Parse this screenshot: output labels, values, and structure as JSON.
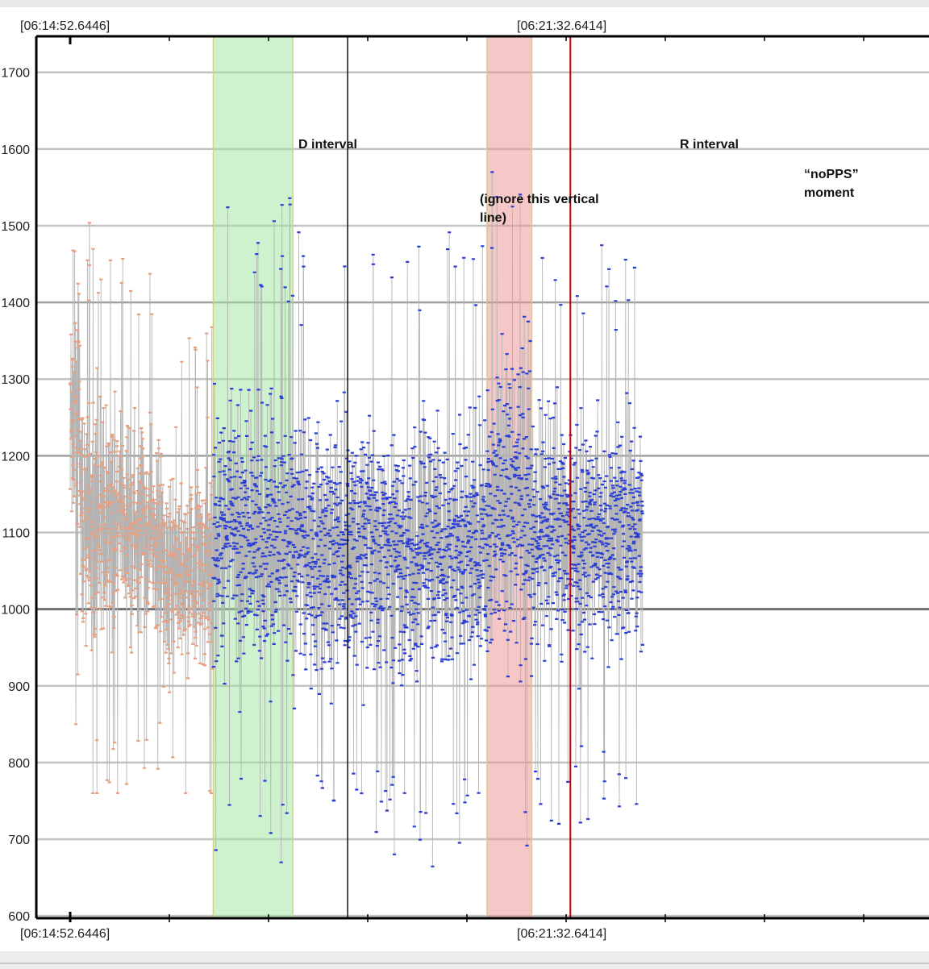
{
  "chart_data": {
    "type": "scatter",
    "title": "",
    "xlabel": "",
    "ylabel": "",
    "x_tick_labels_top": [
      "[06:14:52.6446]",
      "[06:21:32.6414]"
    ],
    "x_tick_labels_bottom": [
      "[06:14:52.6446]",
      "[06:21:32.6414]"
    ],
    "y_ticks": [
      600,
      700,
      800,
      900,
      1000,
      1100,
      1200,
      1300,
      1400,
      1500,
      1600,
      1700
    ],
    "ylim": [
      597,
      1747
    ],
    "grid": true,
    "series": [
      {
        "color": "#e8a080",
        "x_range_s": [
          0,
          115
        ],
        "ymin": 760,
        "ymax": 1560,
        "typical_low": 900,
        "typical_high": 1350
      },
      {
        "color": "#2b3fd6",
        "x_range_s": [
          115,
          460
        ],
        "ymin": 640,
        "ymax": 1570,
        "typical_low": 880,
        "typical_high": 1330
      }
    ],
    "annotations": [
      {
        "label": "D interval",
        "x_range_s": [
          115,
          179
        ],
        "color": "#9be69b"
      },
      {
        "label": "R interval",
        "x_range_s": [
          335,
          371
        ],
        "color": "#eb8f8f"
      },
      {
        "label": "(ignore this vertical line)",
        "x_s": 223
      },
      {
        "label": "“noPPS” moment",
        "x_s": 402,
        "color": "#c00000"
      }
    ]
  }
}
